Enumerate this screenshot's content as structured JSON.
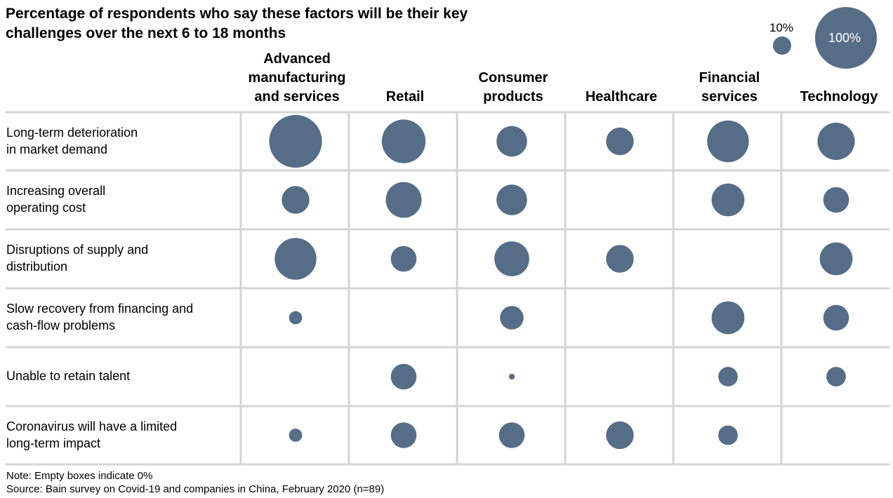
{
  "title": "Percentage of respondents who say these factors will be their key challenges over the next 6 to 18 months",
  "legend": {
    "small_label": "10%",
    "large_label": "100%"
  },
  "colors": {
    "bubble": "#566d87",
    "grid": "#d4d4d4",
    "legend_text_on_bubble": "#ffffff"
  },
  "chart_data": {
    "type": "bubble-matrix",
    "categories": [
      "Advanced manufacturing and services",
      "Retail",
      "Consumer products",
      "Healthcare",
      "Financial services",
      "Technology"
    ],
    "rows": [
      "Long-term deterioration in market demand",
      "Increasing overall operating cost",
      "Disruptions of supply and distribution",
      "Slow recovery from financing and cash-flow problems",
      "Unable to retain talent",
      "Coronavirus will have a limited long-term impact"
    ],
    "values": [
      [
        80,
        55,
        27,
        22,
        50,
        40
      ],
      [
        22,
        37,
        27,
        0,
        31,
        19
      ],
      [
        50,
        19,
        35,
        22,
        0,
        31
      ],
      [
        5,
        0,
        16,
        0,
        31,
        19
      ],
      [
        0,
        19,
        1,
        0,
        11,
        11
      ],
      [
        5,
        19,
        19,
        22,
        11,
        0
      ]
    ],
    "legend_scale": [
      10,
      100
    ]
  },
  "notes": {
    "note": "Note: Empty boxes indicate 0%",
    "source": "Source: Bain survey on Covid-19 and companies in China, February 2020 (n=89)"
  }
}
